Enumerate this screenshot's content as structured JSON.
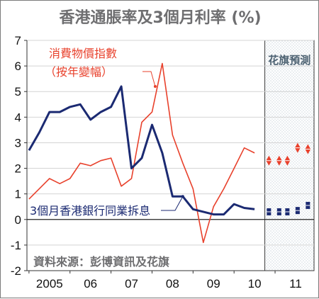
{
  "chart_data": {
    "type": "line",
    "title": "香港通脹率及3個月利率 (%)",
    "ylim": [
      -2,
      7
    ],
    "y_ticks": [
      "-2",
      "-1",
      "0",
      "1",
      "2",
      "3",
      "4",
      "5",
      "6",
      "7"
    ],
    "x_ticks": [
      {
        "label": "2005",
        "x": 2005.0
      },
      {
        "label": "06",
        "x": 2006.0
      },
      {
        "label": "07",
        "x": 2007.0
      },
      {
        "label": "08",
        "x": 2008.0
      },
      {
        "label": "09",
        "x": 2009.0
      },
      {
        "label": "10",
        "x": 2010.0
      },
      {
        "label": "11",
        "x": 2011.0
      }
    ],
    "xlim": [
      2004.95,
      2011.95
    ],
    "forecast_start": 2010.75,
    "forecast_label": "花旗預測",
    "source": "資料來源：彭博資訊及花旗",
    "series": [
      {
        "name_lines": [
          "消費物價指數",
          "（按年變幅）"
        ],
        "color": "#e8412c",
        "x": [
          2005.0,
          2005.25,
          2005.5,
          2005.75,
          2006.0,
          2006.25,
          2006.5,
          2006.75,
          2007.0,
          2007.25,
          2007.5,
          2007.75,
          2008.0,
          2008.25,
          2008.5,
          2008.75,
          2009.0,
          2009.25,
          2009.5,
          2009.75,
          2010.0,
          2010.25,
          2010.5
        ],
        "values": [
          0.8,
          1.2,
          1.6,
          1.4,
          1.6,
          2.2,
          2.1,
          2.3,
          2.4,
          1.3,
          1.6,
          3.8,
          4.2,
          6.1,
          3.3,
          2.2,
          1.2,
          -0.9,
          0.5,
          1.2,
          2.0,
          2.8,
          2.6
        ],
        "forecast_x": [
          2010.85,
          2011.1,
          2011.3,
          2011.55,
          2011.8
        ],
        "forecast_values": [
          2.3,
          2.3,
          2.3,
          2.8,
          2.75
        ]
      },
      {
        "name": "3個月香港銀行同業拆息",
        "color": "#1b2a72",
        "x": [
          2005.0,
          2005.25,
          2005.5,
          2005.75,
          2006.0,
          2006.25,
          2006.5,
          2006.75,
          2007.0,
          2007.25,
          2007.5,
          2007.75,
          2008.0,
          2008.25,
          2008.5,
          2008.75,
          2009.0,
          2009.25,
          2009.5,
          2009.75,
          2010.0,
          2010.25,
          2010.5
        ],
        "values": [
          2.7,
          3.4,
          4.2,
          4.2,
          4.4,
          4.5,
          3.9,
          4.2,
          4.4,
          5.2,
          2.0,
          2.4,
          3.7,
          2.6,
          0.9,
          0.9,
          0.4,
          0.3,
          0.2,
          0.2,
          0.6,
          0.45,
          0.4
        ],
        "forecast_x": [
          2010.85,
          2011.1,
          2011.3,
          2011.55,
          2011.8
        ],
        "forecast_values": [
          0.3,
          0.3,
          0.3,
          0.35,
          0.55
        ]
      }
    ]
  }
}
